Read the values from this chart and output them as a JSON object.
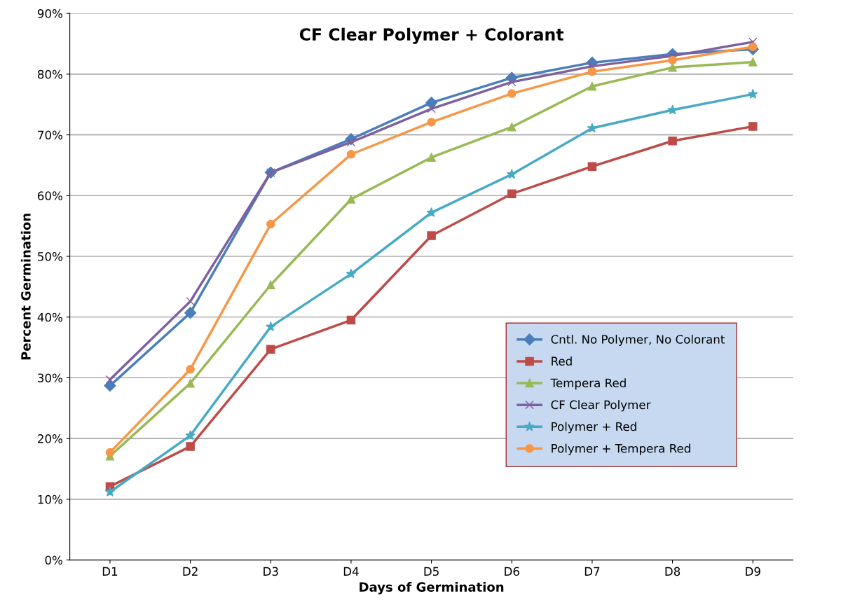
{
  "chart_data": {
    "type": "line",
    "title": "CF Clear Polymer + Colorant",
    "xlabel": "Days of Germination",
    "ylabel": "Percent Germination",
    "categories": [
      "D1",
      "D2",
      "D3",
      "D4",
      "D5",
      "D6",
      "D7",
      "D8",
      "D9"
    ],
    "ylim": [
      0,
      90
    ],
    "yticks": [
      {
        "value": 0,
        "label": "0%"
      },
      {
        "value": 10,
        "label": "10%"
      },
      {
        "value": 20,
        "label": "20%"
      },
      {
        "value": 30,
        "label": "30%"
      },
      {
        "value": 40,
        "label": "40%"
      },
      {
        "value": 50,
        "label": "50%"
      },
      {
        "value": 60,
        "label": "60%"
      },
      {
        "value": 70,
        "label": "70%"
      },
      {
        "value": 80,
        "label": "80%"
      },
      {
        "value": 90,
        "label": "90%"
      }
    ],
    "grid": "y",
    "legend": "lower right",
    "series": [
      {
        "name": "Cntl. No Polymer, No Colorant",
        "color": "#4a7ebb",
        "marker": "diamond",
        "values": [
          28.7,
          40.7,
          63.8,
          69.3,
          75.3,
          79.4,
          81.9,
          83.3,
          84.1
        ]
      },
      {
        "name": "Red",
        "color": "#be4b48",
        "marker": "square",
        "values": [
          12.1,
          18.7,
          34.7,
          39.5,
          53.4,
          60.3,
          64.8,
          69.0,
          71.4
        ]
      },
      {
        "name": "Tempera Red",
        "color": "#98b954",
        "marker": "triangle",
        "values": [
          17.1,
          29.1,
          45.3,
          59.4,
          66.3,
          71.3,
          78.0,
          81.1,
          82.0
        ]
      },
      {
        "name": "CF Clear Polymer",
        "color": "#7d60a0",
        "marker": "cross",
        "values": [
          29.7,
          42.6,
          63.8,
          68.8,
          74.3,
          78.7,
          81.3,
          83.0,
          85.3
        ]
      },
      {
        "name": "Polymer + Red",
        "color": "#46aac5",
        "marker": "star",
        "values": [
          11.2,
          20.5,
          38.4,
          47.1,
          57.2,
          63.5,
          71.1,
          74.1,
          76.7
        ]
      },
      {
        "name": "Polymer + Tempera Red",
        "color": "#f79646",
        "marker": "circle",
        "values": [
          17.7,
          31.4,
          55.3,
          66.8,
          72.1,
          76.8,
          80.4,
          82.3,
          84.5
        ]
      }
    ]
  }
}
